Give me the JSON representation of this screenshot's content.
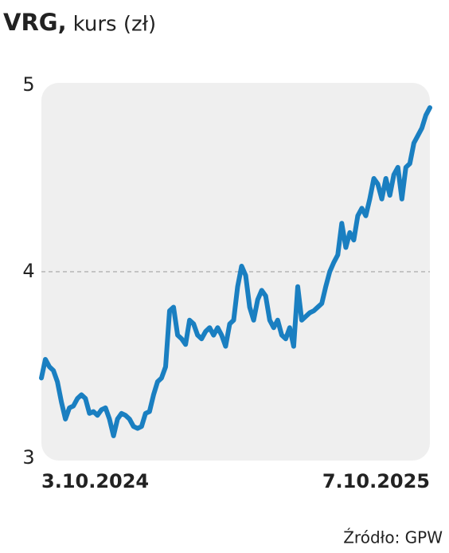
{
  "chart_data": {
    "type": "line",
    "title": "VRG,",
    "subtitle": "kurs (zł)",
    "source": "Źródło: GPW",
    "categories": [
      "3.10.2024",
      null,
      null,
      null,
      null,
      null,
      null,
      null,
      null,
      null,
      null,
      null,
      null,
      null,
      null,
      null,
      null,
      null,
      null,
      null,
      null,
      null,
      null,
      null,
      null,
      null,
      null,
      null,
      null,
      null,
      null,
      null,
      null,
      null,
      null,
      null,
      null,
      null,
      null,
      null,
      null,
      null,
      null,
      null,
      null,
      null,
      null,
      null,
      null,
      null,
      null,
      null,
      null,
      null,
      null,
      null,
      null,
      null,
      null,
      null,
      null,
      null,
      null,
      null,
      null,
      null,
      null,
      null,
      null,
      null,
      null,
      null,
      null,
      null,
      null,
      null,
      null,
      null,
      null,
      null,
      null,
      null,
      null,
      null,
      null,
      null,
      null,
      null,
      null,
      null,
      null,
      null,
      null,
      null,
      null,
      null,
      null,
      "7.10.2025"
    ],
    "values": [
      3.43,
      3.53,
      3.49,
      3.47,
      3.41,
      3.3,
      3.21,
      3.27,
      3.28,
      3.32,
      3.34,
      3.32,
      3.24,
      3.25,
      3.23,
      3.26,
      3.27,
      3.21,
      3.12,
      3.21,
      3.24,
      3.23,
      3.21,
      3.17,
      3.16,
      3.17,
      3.24,
      3.25,
      3.34,
      3.41,
      3.43,
      3.49,
      3.79,
      3.81,
      3.66,
      3.64,
      3.61,
      3.74,
      3.72,
      3.66,
      3.64,
      3.68,
      3.7,
      3.66,
      3.7,
      3.66,
      3.6,
      3.72,
      3.74,
      3.92,
      4.03,
      3.98,
      3.81,
      3.74,
      3.85,
      3.9,
      3.87,
      3.74,
      3.7,
      3.74,
      3.66,
      3.64,
      3.7,
      3.6,
      3.92,
      3.74,
      3.76,
      3.78,
      3.79,
      3.81,
      3.83,
      3.92,
      4.0,
      4.05,
      4.09,
      4.26,
      4.13,
      4.21,
      4.17,
      4.3,
      4.34,
      4.3,
      4.39,
      4.5,
      4.47,
      4.39,
      4.5,
      4.41,
      4.52,
      4.56,
      4.39,
      4.56,
      4.58,
      4.69,
      4.73,
      4.77,
      4.84,
      4.88
    ],
    "color": "#1a7fc1",
    "ylim": [
      3,
      5
    ],
    "yticks": [
      3,
      4,
      5
    ],
    "grid": true
  }
}
